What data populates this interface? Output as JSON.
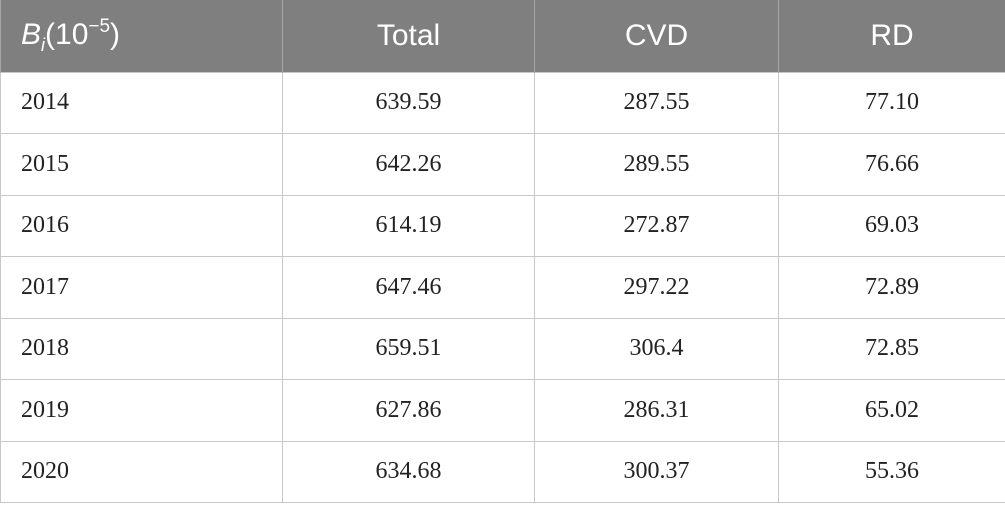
{
  "header": {
    "first_col": {
      "symbol": "B",
      "subscript": "i",
      "prefix": "(10",
      "exponent": "−5",
      "suffix": ")"
    },
    "columns": [
      "Total",
      "CVD",
      "RD"
    ]
  },
  "rows": [
    {
      "year": "2014",
      "total": "639.59",
      "cvd": "287.55",
      "rd": "77.10"
    },
    {
      "year": "2015",
      "total": "642.26",
      "cvd": "289.55",
      "rd": "76.66"
    },
    {
      "year": "2016",
      "total": "614.19",
      "cvd": "272.87",
      "rd": "69.03"
    },
    {
      "year": "2017",
      "total": "647.46",
      "cvd": "297.22",
      "rd": "72.89"
    },
    {
      "year": "2018",
      "total": "659.51",
      "cvd": "306.4",
      "rd": "72.85"
    },
    {
      "year": "2019",
      "total": "627.86",
      "cvd": "286.31",
      "rd": "65.02"
    },
    {
      "year": "2020",
      "total": "634.68",
      "cvd": "300.37",
      "rd": "55.36"
    }
  ]
}
